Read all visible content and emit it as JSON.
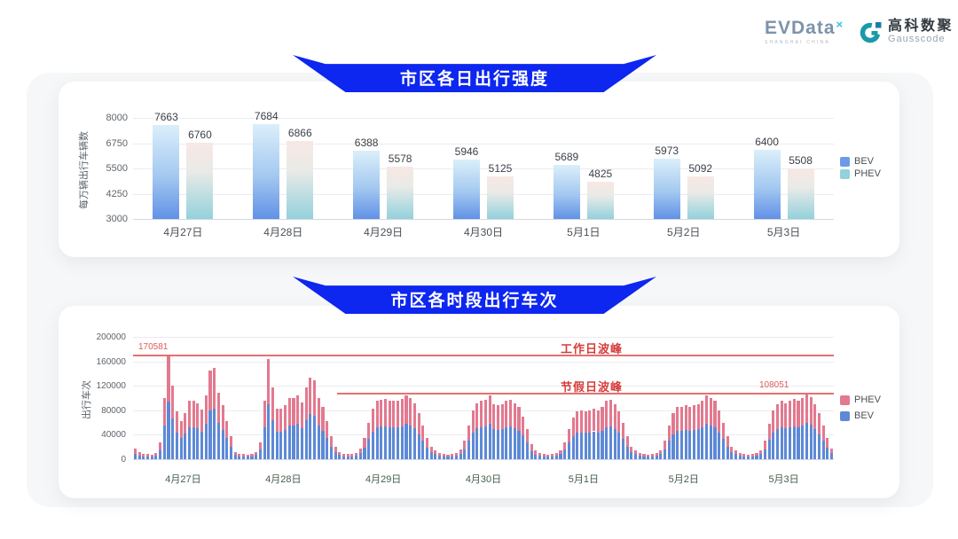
{
  "header": {
    "evdata": {
      "word": "EVData",
      "sup": "×",
      "sub": "SHANGHAI CHINA"
    },
    "gausscode": {
      "cn": "高科数聚",
      "en": "Gausscode"
    }
  },
  "banners": {
    "daily": "市区各日出行强度",
    "hourly": "市区各时段出行车次"
  },
  "colors": {
    "banner_blue": "#0d26f0",
    "bev_blue": "#5d89d6",
    "phev_pink": "#e2798f",
    "bev_legend_top": "#6d9ae8",
    "phev_legend_top": "#93d1dc",
    "annotation_red": "#d63c3c",
    "annotation_line_red": "#e57070",
    "section_bg": "#f6f7f8"
  },
  "chart_data": [
    {
      "type": "bar",
      "title": "市区各日出行强度",
      "ylabel": "每万辆出行车辆数",
      "categories": [
        "4月27日",
        "4月28日",
        "4月29日",
        "4月30日",
        "5月1日",
        "5月2日",
        "5月3日"
      ],
      "series": [
        {
          "name": "BEV",
          "values": [
            7663,
            7684,
            6388,
            5946,
            5689,
            5973,
            6400
          ]
        },
        {
          "name": "PHEV",
          "values": [
            6760,
            6866,
            5578,
            5125,
            4825,
            5092,
            5508
          ]
        }
      ],
      "ylim": [
        3000,
        8000
      ],
      "yticks": [
        3000,
        4250,
        5500,
        6750,
        8000
      ],
      "legend": [
        "BEV",
        "PHEV"
      ],
      "legend_position": "right",
      "grid": true
    },
    {
      "type": "bar",
      "stacked": true,
      "title": "市区各时段出行车次",
      "ylabel": "出行车次",
      "bars_per_day": 24,
      "day_labels": [
        "4月27日",
        "4月28日",
        "4月29日",
        "4月30日",
        "5月1日",
        "5月2日",
        "5月3日"
      ],
      "totals_by_day": [
        [
          17000,
          11000,
          9000,
          8000,
          7000,
          10000,
          27000,
          100000,
          170581,
          120000,
          78000,
          62000,
          76000,
          95000,
          95000,
          91000,
          81000,
          105000,
          145000,
          150000,
          108000,
          88000,
          62000,
          38000
        ],
        [
          12000,
          9000,
          8000,
          7000,
          8000,
          12000,
          28000,
          95000,
          164000,
          117000,
          82000,
          82000,
          88000,
          100000,
          100000,
          105000,
          93000,
          117000,
          134000,
          129000,
          100000,
          85000,
          62000,
          38000
        ],
        [
          20000,
          12000,
          9000,
          8000,
          8000,
          10000,
          18000,
          35000,
          60000,
          82000,
          95000,
          97000,
          98000,
          96000,
          95000,
          96000,
          98000,
          105000,
          100000,
          92000,
          75000,
          55000,
          35000,
          20000
        ],
        [
          15000,
          10000,
          8000,
          7000,
          8000,
          10000,
          16000,
          30000,
          55000,
          80000,
          92000,
          95000,
          97000,
          105000,
          90000,
          88000,
          90000,
          95000,
          97000,
          92000,
          85000,
          70000,
          50000,
          25000
        ],
        [
          14000,
          10000,
          8000,
          7000,
          8000,
          10000,
          15000,
          28000,
          50000,
          68000,
          78000,
          80000,
          78000,
          80000,
          83000,
          80000,
          85000,
          95000,
          97000,
          90000,
          78000,
          60000,
          38000,
          20000
        ],
        [
          15000,
          10000,
          8000,
          7000,
          8000,
          10000,
          15000,
          30000,
          55000,
          75000,
          85000,
          85000,
          88000,
          85000,
          88000,
          90000,
          95000,
          105000,
          100000,
          95000,
          80000,
          60000,
          38000,
          20000
        ],
        [
          15000,
          10000,
          8000,
          7000,
          8000,
          10000,
          15000,
          30000,
          58000,
          80000,
          90000,
          95000,
          92000,
          95000,
          98000,
          95000,
          100000,
          108051,
          102000,
          90000,
          75000,
          55000,
          35000,
          18000
        ]
      ],
      "bev_share": 0.55,
      "ylim": [
        0,
        200000
      ],
      "yticks": [
        0,
        40000,
        80000,
        120000,
        160000,
        200000
      ],
      "legend": [
        "PHEV",
        "BEV"
      ],
      "legend_position": "right",
      "grid": true,
      "annotations": {
        "workday_peak": {
          "label": "工作日波峰",
          "value": 170581,
          "value_label": "170581",
          "span": "all-days"
        },
        "holiday_peak": {
          "label": "节假日波峰",
          "value": 108051,
          "value_label": "108051",
          "span": "from-day-3"
        }
      }
    }
  ]
}
